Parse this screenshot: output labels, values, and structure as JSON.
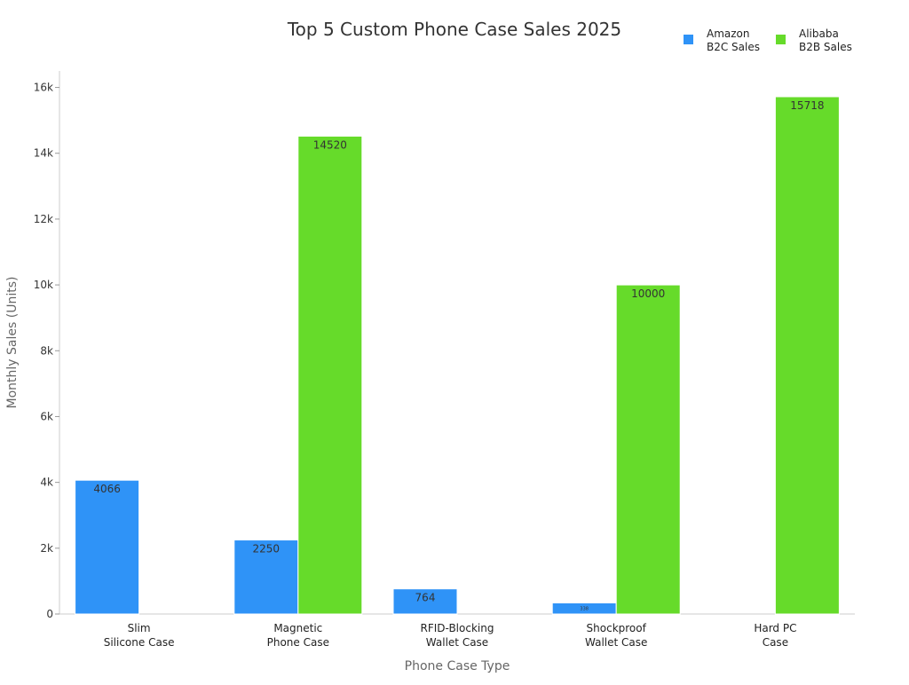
{
  "chart_data": {
    "type": "bar",
    "title": "Top 5 Custom Phone Case Sales 2025",
    "xlabel": "Phone Case Type",
    "ylabel": "Monthly Sales (Units)",
    "categories": [
      [
        "Slim",
        "Silicone Case"
      ],
      [
        "Magnetic",
        "Phone Case"
      ],
      [
        "RFID-Blocking",
        "Wallet Case"
      ],
      [
        "Shockproof",
        "Wallet Case"
      ],
      [
        "Hard PC",
        "Case"
      ]
    ],
    "series": [
      {
        "name": [
          "Amazon",
          "B2C Sales"
        ],
        "color": "#2F93F7",
        "values": [
          4066,
          2250,
          764,
          338,
          0
        ],
        "labels": [
          "4066",
          "2250",
          "764",
          "338",
          ""
        ]
      },
      {
        "name": [
          "Alibaba",
          "B2B Sales"
        ],
        "color": "#66DB2A",
        "values": [
          0,
          14520,
          0,
          10000,
          15718
        ],
        "labels": [
          "",
          "14520",
          "",
          "10000",
          "15718"
        ]
      }
    ],
    "ylim": [
      0,
      16500
    ],
    "yticks": [
      0,
      2000,
      4000,
      6000,
      8000,
      10000,
      12000,
      14000,
      16000
    ],
    "ytick_labels": [
      "0",
      "2k",
      "4k",
      "6k",
      "8k",
      "10k",
      "12k",
      "14k",
      "16k"
    ],
    "grid": false,
    "legend_position": "top-right"
  }
}
